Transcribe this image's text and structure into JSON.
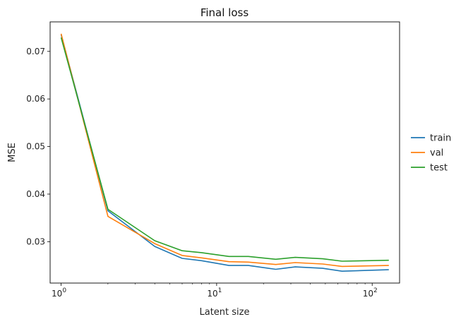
{
  "chart_data": {
    "type": "line",
    "title": "Final loss",
    "xlabel": "Latent size",
    "ylabel": "MSE",
    "xscale": "log",
    "xlim": [
      0.85,
      150
    ],
    "ylim": [
      0.0213,
      0.0762
    ],
    "x": [
      1,
      2,
      4,
      6,
      8,
      12,
      16,
      24,
      32,
      48,
      64,
      128
    ],
    "xticks": [
      {
        "value": 1,
        "base": "10",
        "exp": "0"
      },
      {
        "value": 10,
        "base": "10",
        "exp": "1"
      },
      {
        "value": 100,
        "base": "10",
        "exp": "2"
      }
    ],
    "yticks": [
      {
        "value": 0.03,
        "label": "0.03"
      },
      {
        "value": 0.04,
        "label": "0.04"
      },
      {
        "value": 0.05,
        "label": "0.05"
      },
      {
        "value": 0.06,
        "label": "0.06"
      },
      {
        "value": 0.07,
        "label": "0.07"
      }
    ],
    "grid": false,
    "legend_position": "center-right",
    "series": [
      {
        "name": "train",
        "color": "#1f77b4",
        "values": [
          0.0735,
          0.0365,
          0.029,
          0.0265,
          0.026,
          0.025,
          0.025,
          0.0242,
          0.0247,
          0.0244,
          0.0238,
          0.0241
        ]
      },
      {
        "name": "val",
        "color": "#ff7f0e",
        "values": [
          0.0737,
          0.0353,
          0.0296,
          0.0271,
          0.0266,
          0.0258,
          0.0257,
          0.0252,
          0.0256,
          0.0253,
          0.0248,
          0.025
        ]
      },
      {
        "name": "test",
        "color": "#2ca02c",
        "values": [
          0.0729,
          0.0368,
          0.0302,
          0.0281,
          0.0277,
          0.0269,
          0.0269,
          0.0263,
          0.0267,
          0.0264,
          0.0259,
          0.0261
        ]
      }
    ]
  }
}
